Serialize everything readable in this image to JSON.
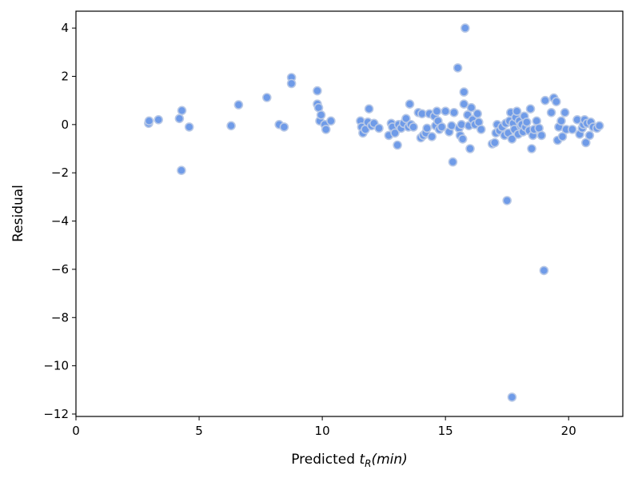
{
  "chart_data": {
    "type": "scatter",
    "title": "",
    "xlabel_prefix": "Predicted ",
    "xlabel_var": "t",
    "xlabel_sub": "R",
    "xlabel_unit": "(min)",
    "ylabel": "Residual",
    "xlim": [
      0,
      22.2
    ],
    "ylim": [
      -12.1,
      4.7
    ],
    "xticks": [
      0,
      5,
      10,
      15,
      20
    ],
    "yticks": [
      4,
      2,
      0,
      -2,
      -4,
      -6,
      -8,
      -10,
      -12
    ],
    "ytick_labels": [
      "4",
      "2",
      "0",
      "−2",
      "−4",
      "−6",
      "−8",
      "−10",
      "−12"
    ],
    "grid": false,
    "marker_color": "#6f9be8",
    "marker_edge_color": "#b9c9e6",
    "points": [
      [
        2.95,
        0.05
      ],
      [
        2.97,
        0.15
      ],
      [
        3.35,
        0.2
      ],
      [
        4.2,
        0.25
      ],
      [
        4.3,
        0.58
      ],
      [
        4.28,
        -1.9
      ],
      [
        4.6,
        -0.1
      ],
      [
        6.3,
        -0.05
      ],
      [
        6.6,
        0.82
      ],
      [
        7.75,
        1.12
      ],
      [
        8.25,
        0.0
      ],
      [
        8.45,
        -0.1
      ],
      [
        8.75,
        1.95
      ],
      [
        8.75,
        1.7
      ],
      [
        9.8,
        1.4
      ],
      [
        9.8,
        0.85
      ],
      [
        9.85,
        0.7
      ],
      [
        9.9,
        0.15
      ],
      [
        9.95,
        0.4
      ],
      [
        10.1,
        0.0
      ],
      [
        10.15,
        -0.2
      ],
      [
        10.35,
        0.15
      ],
      [
        11.55,
        0.15
      ],
      [
        11.6,
        -0.1
      ],
      [
        11.65,
        -0.35
      ],
      [
        11.75,
        -0.2
      ],
      [
        11.85,
        0.1
      ],
      [
        11.9,
        0.65
      ],
      [
        12.0,
        -0.05
      ],
      [
        12.1,
        0.05
      ],
      [
        12.3,
        -0.15
      ],
      [
        12.7,
        -0.45
      ],
      [
        12.8,
        0.05
      ],
      [
        12.85,
        -0.1
      ],
      [
        12.95,
        -0.35
      ],
      [
        13.05,
        -0.85
      ],
      [
        13.1,
        0.0
      ],
      [
        13.2,
        -0.15
      ],
      [
        13.3,
        0.05
      ],
      [
        13.4,
        0.25
      ],
      [
        13.5,
        -0.1
      ],
      [
        13.55,
        0.85
      ],
      [
        13.6,
        0.0
      ],
      [
        13.7,
        -0.1
      ],
      [
        13.9,
        0.5
      ],
      [
        14.0,
        -0.55
      ],
      [
        14.05,
        0.45
      ],
      [
        14.1,
        -0.45
      ],
      [
        14.2,
        -0.35
      ],
      [
        14.25,
        -0.15
      ],
      [
        14.35,
        0.45
      ],
      [
        14.45,
        -0.5
      ],
      [
        14.55,
        0.35
      ],
      [
        14.6,
        -0.05
      ],
      [
        14.65,
        0.55
      ],
      [
        14.7,
        0.15
      ],
      [
        14.75,
        -0.2
      ],
      [
        14.85,
        -0.1
      ],
      [
        15.0,
        0.55
      ],
      [
        15.15,
        -0.3
      ],
      [
        15.25,
        -0.05
      ],
      [
        15.3,
        -1.55
      ],
      [
        15.35,
        0.5
      ],
      [
        15.5,
        2.35
      ],
      [
        15.55,
        -0.15
      ],
      [
        15.6,
        -0.45
      ],
      [
        15.65,
        0.0
      ],
      [
        15.7,
        -0.6
      ],
      [
        15.75,
        1.35
      ],
      [
        15.75,
        0.85
      ],
      [
        15.8,
        4.0
      ],
      [
        15.9,
        0.4
      ],
      [
        15.95,
        -0.05
      ],
      [
        16.0,
        -1.0
      ],
      [
        16.05,
        0.7
      ],
      [
        16.1,
        0.2
      ],
      [
        16.2,
        0.0
      ],
      [
        16.3,
        0.45
      ],
      [
        16.35,
        0.1
      ],
      [
        16.45,
        -0.2
      ],
      [
        16.9,
        -0.8
      ],
      [
        17.0,
        -0.75
      ],
      [
        17.05,
        -0.35
      ],
      [
        17.1,
        0.0
      ],
      [
        17.2,
        -0.25
      ],
      [
        17.3,
        -0.1
      ],
      [
        17.4,
        -0.45
      ],
      [
        17.45,
        0.05
      ],
      [
        17.5,
        -3.15
      ],
      [
        17.55,
        -0.35
      ],
      [
        17.6,
        0.15
      ],
      [
        17.65,
        0.5
      ],
      [
        17.7,
        -0.6
      ],
      [
        17.7,
        -11.3
      ],
      [
        17.75,
        0.05
      ],
      [
        17.8,
        -0.2
      ],
      [
        17.85,
        0.3
      ],
      [
        17.9,
        0.55
      ],
      [
        17.95,
        -0.4
      ],
      [
        18.0,
        0.15
      ],
      [
        18.05,
        -0.05
      ],
      [
        18.1,
        0.0
      ],
      [
        18.15,
        -0.3
      ],
      [
        18.2,
        0.35
      ],
      [
        18.25,
        -0.1
      ],
      [
        18.3,
        0.1
      ],
      [
        18.4,
        -0.25
      ],
      [
        18.45,
        0.65
      ],
      [
        18.5,
        -1.0
      ],
      [
        18.55,
        -0.45
      ],
      [
        18.6,
        -0.2
      ],
      [
        18.7,
        0.15
      ],
      [
        18.8,
        -0.15
      ],
      [
        18.9,
        -0.45
      ],
      [
        19.0,
        -6.05
      ],
      [
        19.05,
        1.0
      ],
      [
        19.3,
        0.5
      ],
      [
        19.4,
        1.1
      ],
      [
        19.5,
        0.95
      ],
      [
        19.55,
        -0.65
      ],
      [
        19.6,
        -0.1
      ],
      [
        19.7,
        0.15
      ],
      [
        19.75,
        -0.5
      ],
      [
        19.85,
        0.5
      ],
      [
        19.9,
        -0.2
      ],
      [
        20.15,
        -0.2
      ],
      [
        20.35,
        0.2
      ],
      [
        20.45,
        -0.4
      ],
      [
        20.55,
        -0.15
      ],
      [
        20.6,
        0.0
      ],
      [
        20.65,
        0.2
      ],
      [
        20.7,
        -0.75
      ],
      [
        20.75,
        0.05
      ],
      [
        20.85,
        -0.45
      ],
      [
        20.9,
        0.1
      ],
      [
        21.0,
        -0.1
      ],
      [
        21.15,
        -0.15
      ],
      [
        21.25,
        -0.05
      ]
    ]
  }
}
